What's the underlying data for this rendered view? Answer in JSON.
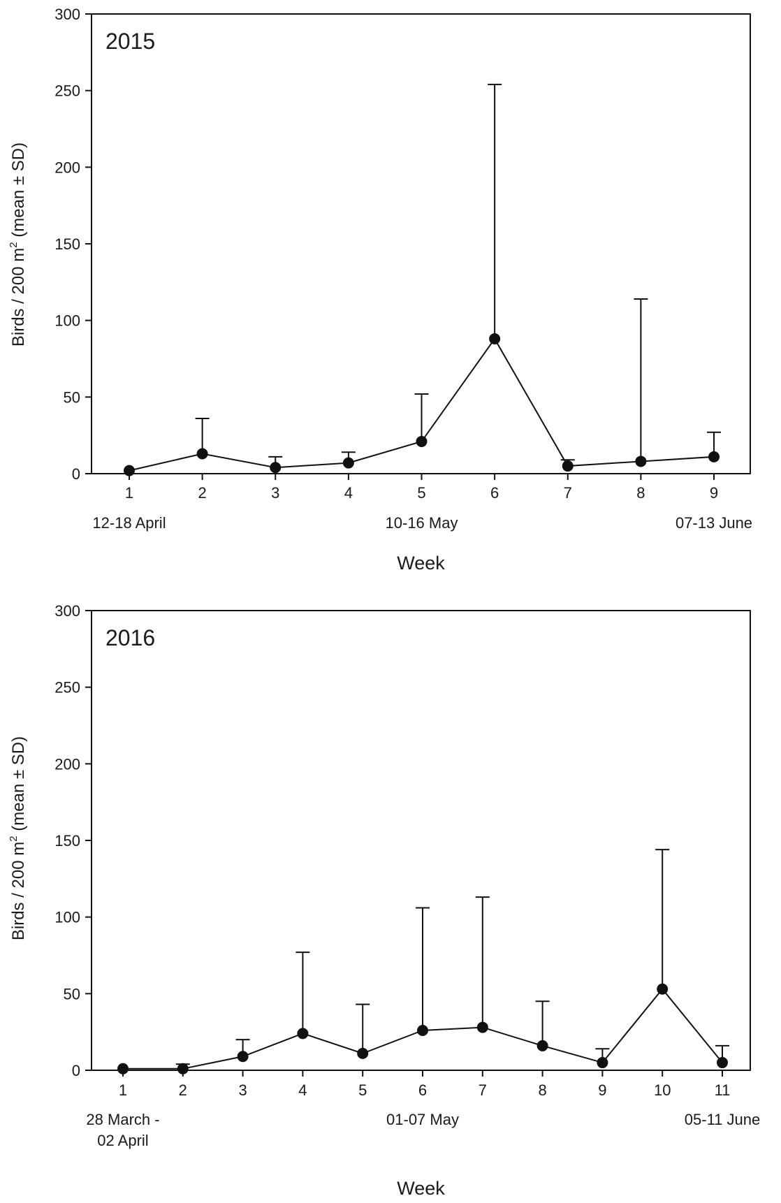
{
  "chart_data": [
    {
      "type": "line",
      "panel_label": "2015",
      "xlabel": "Week",
      "ylabel": "Birds / 200 m² (mean ± SD)",
      "ylabel_parts": {
        "main": "Birds / 200 m",
        "sup": "2",
        "tail": " (mean ± SD)"
      },
      "ylim": [
        0,
        300
      ],
      "yticks": [
        "0",
        "50",
        "100",
        "150",
        "200",
        "250",
        "300"
      ],
      "x": [
        1,
        2,
        3,
        4,
        5,
        6,
        7,
        8,
        9
      ],
      "xticks": [
        "1",
        "2",
        "3",
        "4",
        "5",
        "6",
        "7",
        "8",
        "9"
      ],
      "date_labels": [
        {
          "week": 1,
          "lines": [
            "12-18 April"
          ]
        },
        {
          "week": 5,
          "lines": [
            "10-16 May"
          ]
        },
        {
          "week": 9,
          "lines": [
            "07-13 June"
          ]
        }
      ],
      "series": [
        {
          "values": [
            2,
            13,
            4,
            7,
            21,
            88,
            5,
            8,
            11
          ],
          "sd_upper": [
            2,
            36,
            11,
            14,
            52,
            254,
            9,
            114,
            27
          ]
        }
      ],
      "grid": false,
      "marker": "filled-circle",
      "color": "#111111"
    },
    {
      "type": "line",
      "panel_label": "2016",
      "xlabel": "Week",
      "ylabel": "Birds / 200 m² (mean ± SD)",
      "ylabel_parts": {
        "main": "Birds / 200 m",
        "sup": "2",
        "tail": " (mean ± SD)"
      },
      "ylim": [
        0,
        300
      ],
      "yticks": [
        "0",
        "50",
        "100",
        "150",
        "200",
        "250",
        "300"
      ],
      "x": [
        1,
        2,
        3,
        4,
        5,
        6,
        7,
        8,
        9,
        10,
        11
      ],
      "xticks": [
        "1",
        "2",
        "3",
        "4",
        "5",
        "6",
        "7",
        "8",
        "9",
        "10",
        "11"
      ],
      "date_labels": [
        {
          "week": 1,
          "lines": [
            "28 March -",
            "02 April"
          ]
        },
        {
          "week": 6,
          "lines": [
            "01-07 May"
          ]
        },
        {
          "week": 11,
          "lines": [
            "05-11 June"
          ]
        }
      ],
      "series": [
        {
          "values": [
            1,
            1,
            9,
            24,
            11,
            26,
            28,
            16,
            5,
            53,
            5
          ],
          "sd_upper": [
            1,
            4,
            20,
            77,
            43,
            106,
            113,
            45,
            14,
            144,
            16
          ]
        }
      ],
      "grid": false,
      "marker": "filled-circle",
      "color": "#111111"
    }
  ]
}
